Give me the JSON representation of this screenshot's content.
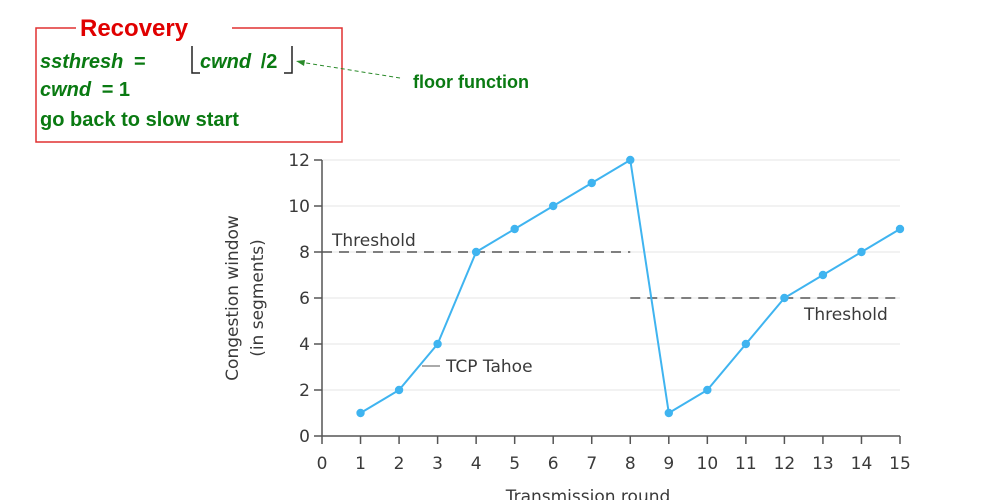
{
  "recovery_box": {
    "title": "Recovery",
    "line1_var": "ssthresh",
    "line1_eq": "=",
    "line1_floor_var": "cwnd",
    "line1_floor_rest": "/2",
    "line2_var": "cwnd",
    "line2_rest": "= 1",
    "line3": "go back to slow start",
    "floor_label": "floor function"
  },
  "chart_data": {
    "type": "line",
    "xlabel": "Transmission round",
    "ylabel": "Congestion window",
    "ylabel_sub": "(in segments)",
    "xlim": [
      0,
      15
    ],
    "ylim": [
      0,
      12
    ],
    "xticks": [
      "0",
      "1",
      "2",
      "3",
      "4",
      "5",
      "6",
      "7",
      "8",
      "9",
      "10",
      "11",
      "12",
      "13",
      "14",
      "15"
    ],
    "yticks": [
      "0",
      "2",
      "4",
      "6",
      "8",
      "10",
      "12"
    ],
    "grid": true,
    "series": [
      {
        "name": "TCP Tahoe",
        "color": "#3fb4f0",
        "x": [
          1,
          2,
          3,
          4,
          5,
          6,
          7,
          8,
          9,
          10,
          11,
          12,
          13,
          14,
          15
        ],
        "values": [
          1,
          2,
          4,
          8,
          9,
          10,
          11,
          12,
          1,
          2,
          4,
          6,
          7,
          8,
          9
        ]
      }
    ],
    "thresholds": [
      {
        "label": "Threshold",
        "value": 8,
        "x_range": [
          0,
          8
        ]
      },
      {
        "label": "Threshold",
        "value": 6,
        "x_range": [
          8,
          15
        ]
      }
    ],
    "annotations": [
      {
        "text": "TCP Tahoe",
        "x": 3,
        "y": 3
      }
    ]
  }
}
